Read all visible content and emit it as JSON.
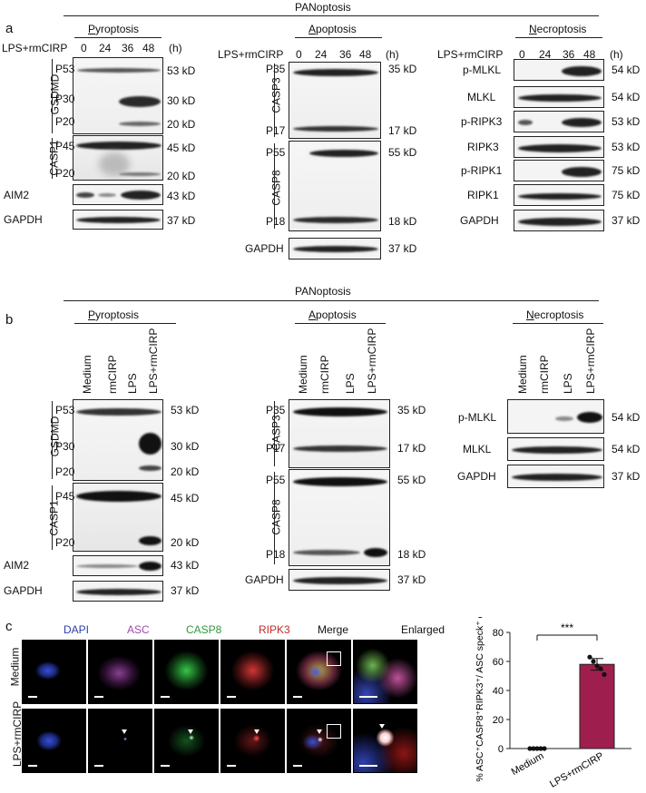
{
  "a": {
    "letter": "a",
    "title": "PANoptosis",
    "pyro": {
      "header": "Pyroptosis",
      "treat": "LPS+rmCIRP",
      "times": [
        "0",
        "24",
        "36",
        "48"
      ],
      "unit": "(h)",
      "gsdmd": "GSDMD",
      "p53": "P53",
      "p30": "P30",
      "p20": "P20",
      "casp1": "CASP1",
      "p45": "P45",
      "p20b": "P20",
      "aim2": "AIM2",
      "gapdh": "GAPDH",
      "kd": [
        "53 kD",
        "30 kD",
        "20 kD",
        "45 kD",
        "20 kD",
        "43 kD",
        "37 kD"
      ]
    },
    "apo": {
      "header": "Apoptosis",
      "treat": "LPS+rmCIRP",
      "times": [
        "0",
        "24",
        "36",
        "48"
      ],
      "unit": "(h)",
      "casp3": "CASP3",
      "p35": "P35",
      "p17": "P17",
      "casp8": "CASP8",
      "p55": "P55",
      "p18": "P18",
      "gapdh": "GAPDH",
      "kd": [
        "35 kD",
        "17 kD",
        "55 kD",
        "18 kD",
        "37 kD"
      ]
    },
    "necro": {
      "header": "Necroptosis",
      "treat": "LPS+rmCIRP",
      "times": [
        "0",
        "24",
        "36",
        "48"
      ],
      "unit": "(h)",
      "rows": [
        "p-MLKL",
        "MLKL",
        "p-RIPK3",
        "RIPK3",
        "p-RIPK1",
        "RIPK1",
        "GAPDH"
      ],
      "kd": [
        "54 kD",
        "54 kD",
        "53 kD",
        "53 kD",
        "75 kD",
        "75 kD",
        "37 kD"
      ]
    }
  },
  "b": {
    "letter": "b",
    "title": "PANoptosis",
    "conds": [
      "Medium",
      "rmCIRP",
      "LPS",
      "LPS+rmCIRP"
    ],
    "pyro": {
      "header": "Pyroptosis",
      "gsdmd": "GSDMD",
      "p53": "P53",
      "p30": "P30",
      "p20": "P20",
      "casp1": "CASP1",
      "p45": "P45",
      "p20b": "P20",
      "aim2": "AIM2",
      "gapdh": "GAPDH",
      "kd": [
        "53 kD",
        "30 kD",
        "20 kD",
        "45 kD",
        "20 kD",
        "43 kD",
        "37 kD"
      ]
    },
    "apo": {
      "header": "Apoptosis",
      "casp3": "CASP3",
      "p35": "P35",
      "p17": "P17",
      "casp8": "CASP8",
      "p55": "P55",
      "p18": "P18",
      "gapdh": "GAPDH",
      "kd": [
        "35 kD",
        "17 kD",
        "55 kD",
        "18 kD",
        "37 kD"
      ]
    },
    "necro": {
      "header": "Necroptosis",
      "rows": [
        "p-MLKL",
        "MLKL",
        "GAPDH"
      ],
      "kd": [
        "54 kD",
        "54 kD",
        "37 kD"
      ]
    }
  },
  "c": {
    "letter": "c",
    "channels": [
      {
        "name": "DAPI",
        "color": "#2d3ea8"
      },
      {
        "name": "ASC",
        "color": "#a04aa8"
      },
      {
        "name": "CASP8",
        "color": "#2e9a3c"
      },
      {
        "name": "RIPK3",
        "color": "#c22a2a"
      },
      {
        "name": "Merge",
        "color": "#111111"
      },
      {
        "name": "Enlarged",
        "color": "#111111"
      }
    ],
    "rows": [
      "Medium",
      "LPS+rmCIRP"
    ]
  },
  "chart_data": {
    "type": "bar",
    "categories": [
      "Medium",
      "LPS+rmCIRP"
    ],
    "values": [
      0,
      58
    ],
    "errors": [
      0,
      4
    ],
    "points": [
      [
        0,
        0,
        0,
        0,
        0
      ],
      [
        63,
        60,
        57,
        55,
        51
      ]
    ],
    "ylabel": "% ASC⁺CASP8⁺RIPK3⁺/ ASC speck⁺ cells",
    "ylim": [
      0,
      80
    ],
    "yticks": [
      "0",
      "20",
      "40",
      "60",
      "80"
    ],
    "significance": "***",
    "bar_color": "#9e1f4d"
  }
}
